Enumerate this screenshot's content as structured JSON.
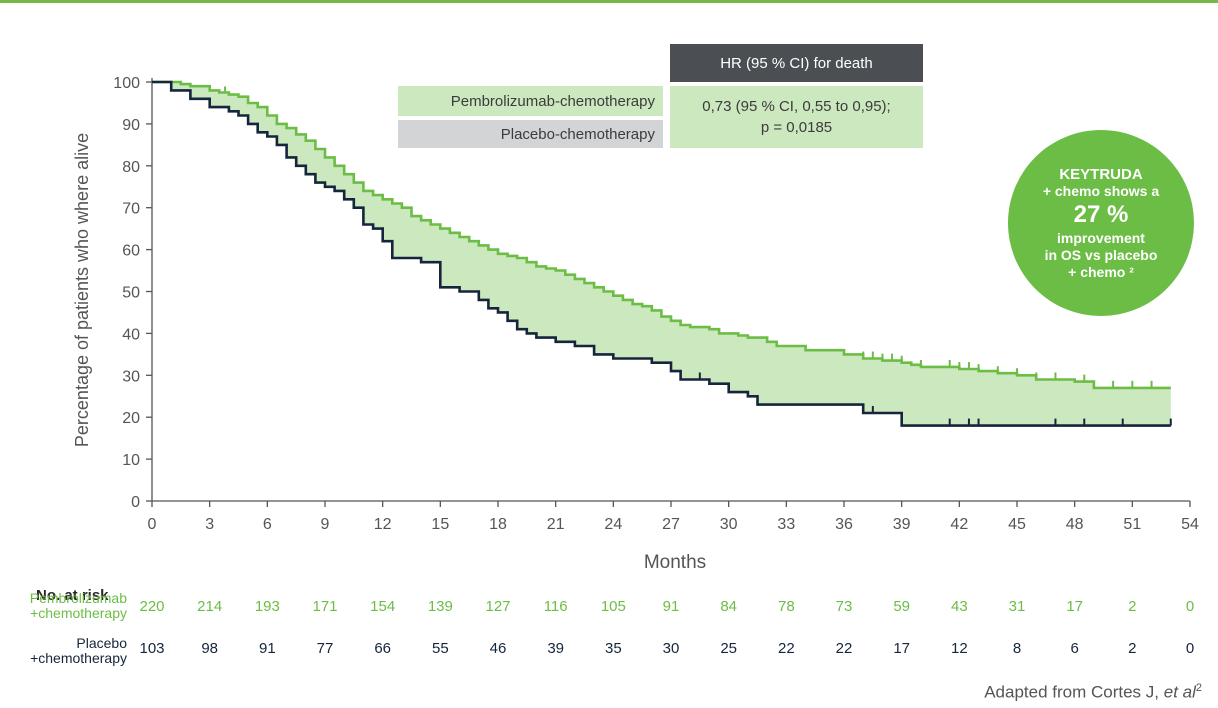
{
  "callout": {
    "line1": "KEYTRUDA",
    "line2": "+ chemo shows a",
    "pct": "27 %",
    "line3": "improvement",
    "line4": "in OS vs placebo",
    "line5": "+ chemo ²"
  },
  "hr_box": {
    "header": "HR (95 % CI) for death",
    "pembro_label": "Pembrolizumab-chemotherapy",
    "placebo_label": "Placebo-chemotherapy",
    "value_line1": "0,73 (95 % CI, 0,55 to 0,95);",
    "value_line2": "p = 0,0185"
  },
  "risk_table": {
    "title": "No. at risk",
    "pembro_label_1": "Pembrolizumab",
    "pembro_label_2": "+chemotherapy",
    "placebo_label_1": "Placebo",
    "placebo_label_2": "+chemotherapy",
    "months": [
      0,
      3,
      6,
      9,
      12,
      15,
      18,
      21,
      24,
      27,
      30,
      33,
      36,
      39,
      42,
      45,
      48,
      51,
      54
    ],
    "pembro": [
      "220",
      "214",
      "193",
      "171",
      "154",
      "139",
      "127",
      "116",
      "105",
      "91",
      "84",
      "78",
      "73",
      "59",
      "43",
      "31",
      "17",
      "2",
      "0"
    ],
    "placebo": [
      "103",
      "98",
      "91",
      "77",
      "66",
      "55",
      "46",
      "39",
      "35",
      "30",
      "25",
      "22",
      "22",
      "17",
      "12",
      "8",
      "6",
      "2",
      "0"
    ]
  },
  "source": "Adapted from Cortes J, et al",
  "source_sup": "2",
  "colors": {
    "pembro": "#6cbd45",
    "placebo": "#15253b",
    "fill": "#cce8bf"
  },
  "chart_data": {
    "type": "line",
    "title": "",
    "xlabel": "Months",
    "ylabel": "Percentage of patients who where alive",
    "xlim": [
      0,
      54
    ],
    "ylim": [
      0,
      100
    ],
    "xticks": [
      0,
      3,
      6,
      9,
      12,
      15,
      18,
      21,
      24,
      27,
      30,
      33,
      36,
      39,
      42,
      45,
      48,
      51,
      54
    ],
    "yticks": [
      0,
      10,
      20,
      30,
      40,
      50,
      60,
      70,
      80,
      90,
      100
    ],
    "series": [
      {
        "name": "Pembrolizumab-chemotherapy",
        "color": "#6cbd45",
        "x": [
          0,
          1,
          1.5,
          2,
          2.5,
          3,
          3.5,
          4,
          4.5,
          5,
          5.5,
          6,
          6.5,
          7,
          7.5,
          8,
          8.5,
          9,
          9.5,
          10,
          10.5,
          11,
          11.5,
          12,
          12.5,
          13,
          13.5,
          14,
          14.5,
          15,
          15.5,
          16,
          16.5,
          17,
          17.5,
          18,
          18.5,
          19,
          19.5,
          20,
          20.5,
          21,
          21.5,
          22,
          22.5,
          23,
          23.5,
          24,
          24.5,
          25,
          25.5,
          26,
          26.5,
          27,
          27.5,
          28,
          29,
          29.5,
          30,
          30.5,
          31,
          32,
          32.5,
          33,
          34,
          35,
          36,
          37,
          38,
          39,
          39.5,
          40,
          41,
          42,
          43,
          44,
          45,
          46,
          47,
          48,
          49,
          50,
          51,
          52,
          52.5,
          53
        ],
        "y": [
          100,
          100,
          99.5,
          99,
          99,
          98,
          97.5,
          97,
          96.5,
          95,
          94,
          92,
          90,
          89,
          87.5,
          86,
          84,
          82,
          80,
          78,
          76,
          74,
          73,
          72,
          71,
          70,
          68,
          67,
          66,
          65,
          64,
          63,
          62,
          61,
          60,
          59,
          58.5,
          58,
          57,
          56,
          55.5,
          55,
          54,
          53,
          52,
          51,
          50,
          49,
          48,
          47,
          46.5,
          45.5,
          44,
          43,
          42,
          41.5,
          41,
          40,
          40,
          39.5,
          39,
          38,
          37,
          37,
          36,
          36,
          35,
          34,
          33.5,
          33,
          32.5,
          32,
          32,
          31.5,
          31,
          30.5,
          30,
          29,
          29,
          28.5,
          27,
          27,
          27,
          27,
          27,
          27
        ]
      },
      {
        "name": "Placebo-chemotherapy",
        "color": "#15253b",
        "x": [
          0,
          1,
          2,
          3,
          4,
          4.5,
          5,
          5.5,
          6,
          6.5,
          7,
          7.5,
          8,
          8.5,
          9,
          9.5,
          10,
          10.5,
          11,
          11.5,
          12,
          12.5,
          13,
          13.5,
          14,
          15,
          16,
          17,
          17.5,
          18,
          18.5,
          19,
          19.5,
          20,
          21,
          22,
          23,
          24,
          25,
          26,
          27,
          27.5,
          28,
          29,
          30,
          31,
          31.5,
          32,
          33,
          34,
          35,
          36,
          37,
          38,
          39,
          40,
          41,
          42,
          43,
          44,
          45,
          46,
          47,
          48,
          49,
          50,
          51,
          52,
          53
        ],
        "y": [
          100,
          98,
          96,
          94,
          93,
          92,
          90,
          88,
          87,
          85,
          82,
          80,
          78,
          76,
          75,
          74,
          72,
          70,
          66,
          65,
          62,
          58,
          58,
          58,
          57,
          51,
          50,
          48,
          46,
          45,
          43,
          41,
          40,
          39,
          38,
          37,
          35,
          34,
          34,
          33,
          31,
          29,
          29,
          28,
          26,
          25,
          23,
          23,
          23,
          23,
          23,
          23,
          21,
          21,
          18,
          18,
          18,
          18,
          18,
          18,
          18,
          18,
          18,
          18,
          18,
          18,
          18,
          18,
          18
        ]
      }
    ],
    "shaded_region": "between series",
    "hazard_ratio": "0,73 (95 % CI, 0,55 to 0,95); p = 0,0185"
  }
}
